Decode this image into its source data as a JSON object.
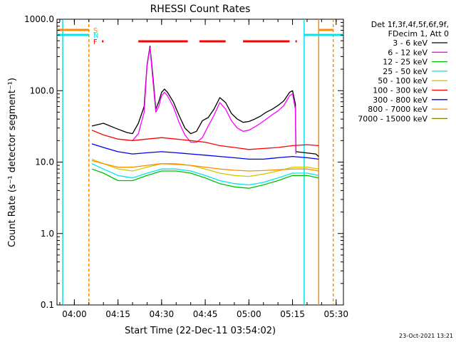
{
  "chart_data": {
    "type": "line",
    "title": "RHESSI Count Rates",
    "xlabel": "Start Time (22-Dec-11 03:54:02)",
    "ylabel": "Count Rate (s⁻¹ detector segment⁻¹)",
    "yscale": "log",
    "ylim": [
      0.1,
      1000
    ],
    "xlim": [
      "03:54:02",
      "05:32:30"
    ],
    "x_ticks": [
      "04:00",
      "04:15",
      "04:30",
      "04:45",
      "05:00",
      "05:15",
      "05:30"
    ],
    "y_ticks": [
      "0.1",
      "1.0",
      "10.0",
      "100.0",
      "1000.0"
    ],
    "legend_header": [
      "Det 1f,3f,4f,5f,6f,9f,",
      "FDecim 1, Att 0"
    ],
    "legend_position": "right-outside",
    "footer_date": "23-Oct-2021 13:21",
    "flag_labels": {
      "S": "S",
      "N": "N",
      "F": "F"
    },
    "flag_colors": {
      "S": "#ff8c00",
      "N": "#00e5ee",
      "F": "#ff0000"
    },
    "vertical_markers": [
      {
        "time": "03:56:00",
        "color": "#00e5ee",
        "style": "solid"
      },
      {
        "time": "04:05:00",
        "color": "#ff8c00",
        "style": "dashed"
      },
      {
        "time": "05:19:00",
        "color": "#00e5ee",
        "style": "solid"
      },
      {
        "time": "05:24:00",
        "color": "#ff8c00",
        "style": "solid"
      },
      {
        "time": "05:29:00",
        "color": "#ff8c00",
        "style": "dashed"
      }
    ],
    "flag_segments": {
      "S": [
        [
          "03:54:02",
          "04:05:00"
        ],
        [
          "05:24:00",
          "05:29:00"
        ]
      ],
      "N": [
        [
          "03:54:02",
          "04:05:00"
        ],
        [
          "05:19:00",
          "05:32:30"
        ]
      ],
      "F": [
        [
          "04:09:30",
          "04:10:00"
        ],
        [
          "04:22:00",
          "04:39:00"
        ],
        [
          "04:43:00",
          "04:52:00"
        ],
        [
          "04:58:00",
          "05:14:00"
        ],
        [
          "05:16:00",
          "05:16:30"
        ]
      ]
    },
    "series": [
      {
        "name": "3 - 6 keV",
        "color": "#000000",
        "points": [
          [
            "04:06",
            "32"
          ],
          [
            "04:10",
            "35"
          ],
          [
            "04:14",
            "30"
          ],
          [
            "04:18",
            "26"
          ],
          [
            "04:20",
            "25"
          ],
          [
            "04:22",
            "35"
          ],
          [
            "04:24",
            "60"
          ],
          [
            "04:25",
            "230"
          ],
          [
            "04:26",
            "420"
          ],
          [
            "04:27",
            "160"
          ],
          [
            "04:28",
            "55"
          ],
          [
            "04:29",
            "70"
          ],
          [
            "04:30",
            "95"
          ],
          [
            "04:31",
            "105"
          ],
          [
            "04:32",
            "95"
          ],
          [
            "04:34",
            "70"
          ],
          [
            "04:36",
            "45"
          ],
          [
            "04:38",
            "30"
          ],
          [
            "04:40",
            "25"
          ],
          [
            "04:42",
            "27"
          ],
          [
            "04:44",
            "38"
          ],
          [
            "04:46",
            "42"
          ],
          [
            "04:48",
            "55"
          ],
          [
            "04:50",
            "80"
          ],
          [
            "04:52",
            "68"
          ],
          [
            "04:54",
            "48"
          ],
          [
            "04:56",
            "40"
          ],
          [
            "04:58",
            "36"
          ],
          [
            "05:00",
            "37"
          ],
          [
            "05:02",
            "40"
          ],
          [
            "05:04",
            "44"
          ],
          [
            "05:06",
            "50"
          ],
          [
            "05:08",
            "55"
          ],
          [
            "05:10",
            "62"
          ],
          [
            "05:12",
            "72"
          ],
          [
            "05:14",
            "95"
          ],
          [
            "05:15",
            "100"
          ],
          [
            "05:16",
            "65"
          ],
          [
            "05:16:10",
            "14"
          ],
          [
            "05:23",
            "13"
          ],
          [
            "05:24",
            "12"
          ]
        ]
      },
      {
        "name": "6 - 12 keV",
        "color": "#ff00ff",
        "points": [
          [
            "04:20",
            "20"
          ],
          [
            "04:22",
            "25"
          ],
          [
            "04:24",
            "50"
          ],
          [
            "04:25",
            "220"
          ],
          [
            "04:26",
            "400"
          ],
          [
            "04:27",
            "140"
          ],
          [
            "04:28",
            "50"
          ],
          [
            "04:29",
            "60"
          ],
          [
            "04:30",
            "85"
          ],
          [
            "04:31",
            "95"
          ],
          [
            "04:32",
            "85"
          ],
          [
            "04:34",
            "60"
          ],
          [
            "04:36",
            "36"
          ],
          [
            "04:38",
            "24"
          ],
          [
            "04:40",
            "19"
          ],
          [
            "04:42",
            "19"
          ],
          [
            "04:44",
            "22"
          ],
          [
            "04:46",
            "32"
          ],
          [
            "04:48",
            "45"
          ],
          [
            "04:50",
            "68"
          ],
          [
            "04:52",
            "55"
          ],
          [
            "04:54",
            "38"
          ],
          [
            "04:56",
            "30"
          ],
          [
            "04:58",
            "27"
          ],
          [
            "05:00",
            "28"
          ],
          [
            "05:02",
            "31"
          ],
          [
            "05:04",
            "35"
          ],
          [
            "05:06",
            "40"
          ],
          [
            "05:08",
            "46"
          ],
          [
            "05:10",
            "52"
          ],
          [
            "05:12",
            "62"
          ],
          [
            "05:14",
            "85"
          ],
          [
            "05:15",
            "90"
          ],
          [
            "05:16",
            "55"
          ],
          [
            "05:16:10",
            "13"
          ]
        ]
      },
      {
        "name": "12 - 25 keV",
        "color": "#00c000",
        "points": [
          [
            "04:06",
            "8"
          ],
          [
            "04:10",
            "7"
          ],
          [
            "04:15",
            "5.5"
          ],
          [
            "04:20",
            "5.5"
          ],
          [
            "04:25",
            "6.5"
          ],
          [
            "04:30",
            "7.5"
          ],
          [
            "04:35",
            "7.5"
          ],
          [
            "04:40",
            "7"
          ],
          [
            "04:45",
            "6"
          ],
          [
            "04:50",
            "5"
          ],
          [
            "04:55",
            "4.5"
          ],
          [
            "05:00",
            "4.3"
          ],
          [
            "05:05",
            "4.8"
          ],
          [
            "05:10",
            "5.5"
          ],
          [
            "05:15",
            "6.5"
          ],
          [
            "05:20",
            "6.5"
          ],
          [
            "05:24",
            "6"
          ]
        ]
      },
      {
        "name": "25 - 50 keV",
        "color": "#00e5ee",
        "points": [
          [
            "04:06",
            "9.5"
          ],
          [
            "04:10",
            "8"
          ],
          [
            "04:15",
            "6.5"
          ],
          [
            "04:20",
            "6"
          ],
          [
            "04:25",
            "7"
          ],
          [
            "04:30",
            "8"
          ],
          [
            "04:35",
            "8"
          ],
          [
            "04:40",
            "7.5"
          ],
          [
            "04:45",
            "6.5"
          ],
          [
            "04:50",
            "5.5"
          ],
          [
            "04:55",
            "5"
          ],
          [
            "05:00",
            "4.8"
          ],
          [
            "05:05",
            "5.2"
          ],
          [
            "05:10",
            "6"
          ],
          [
            "05:15",
            "7"
          ],
          [
            "05:20",
            "7"
          ],
          [
            "05:24",
            "6.5"
          ]
        ]
      },
      {
        "name": "50 - 100 keV",
        "color": "#d4c800",
        "points": [
          [
            "04:06",
            "11"
          ],
          [
            "04:10",
            "9.5"
          ],
          [
            "04:15",
            "8"
          ],
          [
            "04:20",
            "7.5"
          ],
          [
            "04:25",
            "8.5"
          ],
          [
            "04:30",
            "9.5"
          ],
          [
            "04:35",
            "9.5"
          ],
          [
            "04:40",
            "9"
          ],
          [
            "04:45",
            "8"
          ],
          [
            "04:50",
            "7"
          ],
          [
            "04:55",
            "6.5"
          ],
          [
            "05:00",
            "6.3"
          ],
          [
            "05:05",
            "6.8"
          ],
          [
            "05:10",
            "7.5"
          ],
          [
            "05:15",
            "8.5"
          ],
          [
            "05:20",
            "8.5"
          ],
          [
            "05:24",
            "8"
          ]
        ]
      },
      {
        "name": "100 - 300 keV",
        "color": "#ff0000",
        "points": [
          [
            "04:06",
            "28"
          ],
          [
            "04:10",
            "24"
          ],
          [
            "04:15",
            "21"
          ],
          [
            "04:20",
            "20"
          ],
          [
            "04:25",
            "21"
          ],
          [
            "04:30",
            "22"
          ],
          [
            "04:35",
            "21"
          ],
          [
            "04:40",
            "20"
          ],
          [
            "04:45",
            "19"
          ],
          [
            "04:50",
            "17"
          ],
          [
            "04:55",
            "16"
          ],
          [
            "05:00",
            "15"
          ],
          [
            "05:05",
            "15.5"
          ],
          [
            "05:10",
            "16"
          ],
          [
            "05:15",
            "17"
          ],
          [
            "05:20",
            "17.5"
          ],
          [
            "05:24",
            "17"
          ]
        ]
      },
      {
        "name": "300 - 800 keV",
        "color": "#0000ee",
        "points": [
          [
            "04:06",
            "18"
          ],
          [
            "04:10",
            "16"
          ],
          [
            "04:15",
            "14"
          ],
          [
            "04:20",
            "13"
          ],
          [
            "04:25",
            "13.5"
          ],
          [
            "04:30",
            "14"
          ],
          [
            "04:35",
            "13.5"
          ],
          [
            "04:40",
            "13"
          ],
          [
            "04:45",
            "12.5"
          ],
          [
            "04:50",
            "12"
          ],
          [
            "04:55",
            "11.5"
          ],
          [
            "05:00",
            "11"
          ],
          [
            "05:05",
            "11"
          ],
          [
            "05:10",
            "11.5"
          ],
          [
            "05:15",
            "12"
          ],
          [
            "05:20",
            "11.5"
          ],
          [
            "05:24",
            "11"
          ]
        ]
      },
      {
        "name": "800 - 7000 keV",
        "color": "#ff8c00",
        "points": [
          [
            "04:06",
            "10.5"
          ],
          [
            "04:10",
            "9.5"
          ],
          [
            "04:15",
            "8.5"
          ],
          [
            "04:20",
            "8.5"
          ],
          [
            "04:25",
            "9"
          ],
          [
            "04:30",
            "9.5"
          ],
          [
            "04:35",
            "9.3"
          ],
          [
            "04:40",
            "9"
          ],
          [
            "04:45",
            "8.5"
          ],
          [
            "04:50",
            "8"
          ],
          [
            "04:55",
            "7.7"
          ],
          [
            "05:00",
            "7.5"
          ],
          [
            "05:05",
            "7.6"
          ],
          [
            "05:10",
            "7.8"
          ],
          [
            "05:15",
            "8"
          ],
          [
            "05:20",
            "8"
          ],
          [
            "05:24",
            "7.5"
          ]
        ]
      },
      {
        "name": "7000 - 15000 keV",
        "color": "#808000",
        "points": []
      }
    ]
  }
}
